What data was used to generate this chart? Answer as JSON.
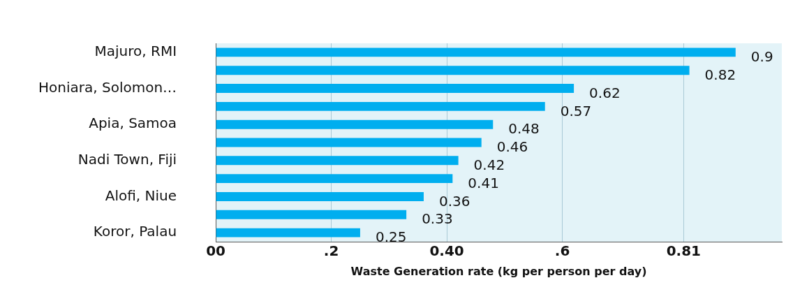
{
  "chart_data": {
    "type": "bar",
    "orientation": "horizontal",
    "xlabel": "Waste Generation rate (kg per person per day)",
    "categories": [
      "Majuro, RMI",
      null,
      "Honiara, Solomon…",
      null,
      "Apia, Samoa",
      null,
      "Nadi Town, Fiji",
      null,
      "Alofi, Niue",
      null,
      "Koror, Palau"
    ],
    "values": [
      0.9,
      0.82,
      0.62,
      0.57,
      0.48,
      0.46,
      0.42,
      0.41,
      0.36,
      0.33,
      0.25
    ],
    "color": "#00aeef",
    "data_labels": true,
    "grid": "x",
    "legend": false,
    "xlim": [
      0,
      0.98
    ],
    "xticks": [
      {
        "value": 0,
        "label": "00"
      },
      {
        "value": 0.2,
        "label": ".2"
      },
      {
        "value": 0.4,
        "label": "0.40"
      },
      {
        "value": 0.6,
        "label": ".6"
      },
      {
        "value": 0.81,
        "label": "0.81"
      }
    ]
  }
}
